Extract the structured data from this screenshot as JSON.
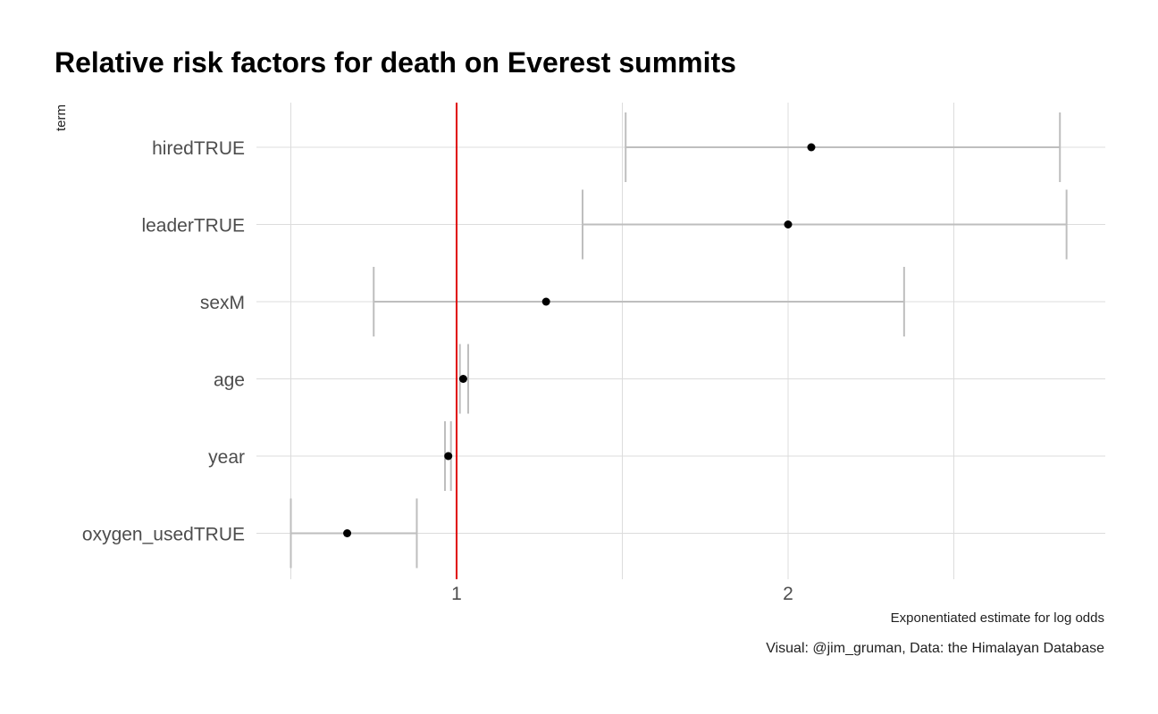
{
  "chart_data": {
    "type": "scatter",
    "title": "Relative risk factors for death on Everest summits",
    "xlabel": "Exponentiated estimate for log odds",
    "ylabel": "term",
    "caption": "Visual: @jim_gruman, Data:  the Himalayan Database",
    "xlim": [
      0.5,
      3.0
    ],
    "x_ticks": [
      1,
      2
    ],
    "reference_line": {
      "x": 1,
      "color": "#e00000"
    },
    "grid": true,
    "terms": [
      "oxygen_usedTRUE",
      "year",
      "age",
      "sexM",
      "leaderTRUE",
      "hiredTRUE"
    ],
    "estimates": [
      0.67,
      0.975,
      1.02,
      1.27,
      2.0,
      2.07
    ],
    "conf_low": [
      0.5,
      0.965,
      1.01,
      0.75,
      1.38,
      1.51
    ],
    "conf_high": [
      0.88,
      0.983,
      1.035,
      2.35,
      2.84,
      2.82
    ],
    "colors": {
      "point": "#000000",
      "errorbar": "#bebebe",
      "grid": "#dcdcdc"
    }
  }
}
